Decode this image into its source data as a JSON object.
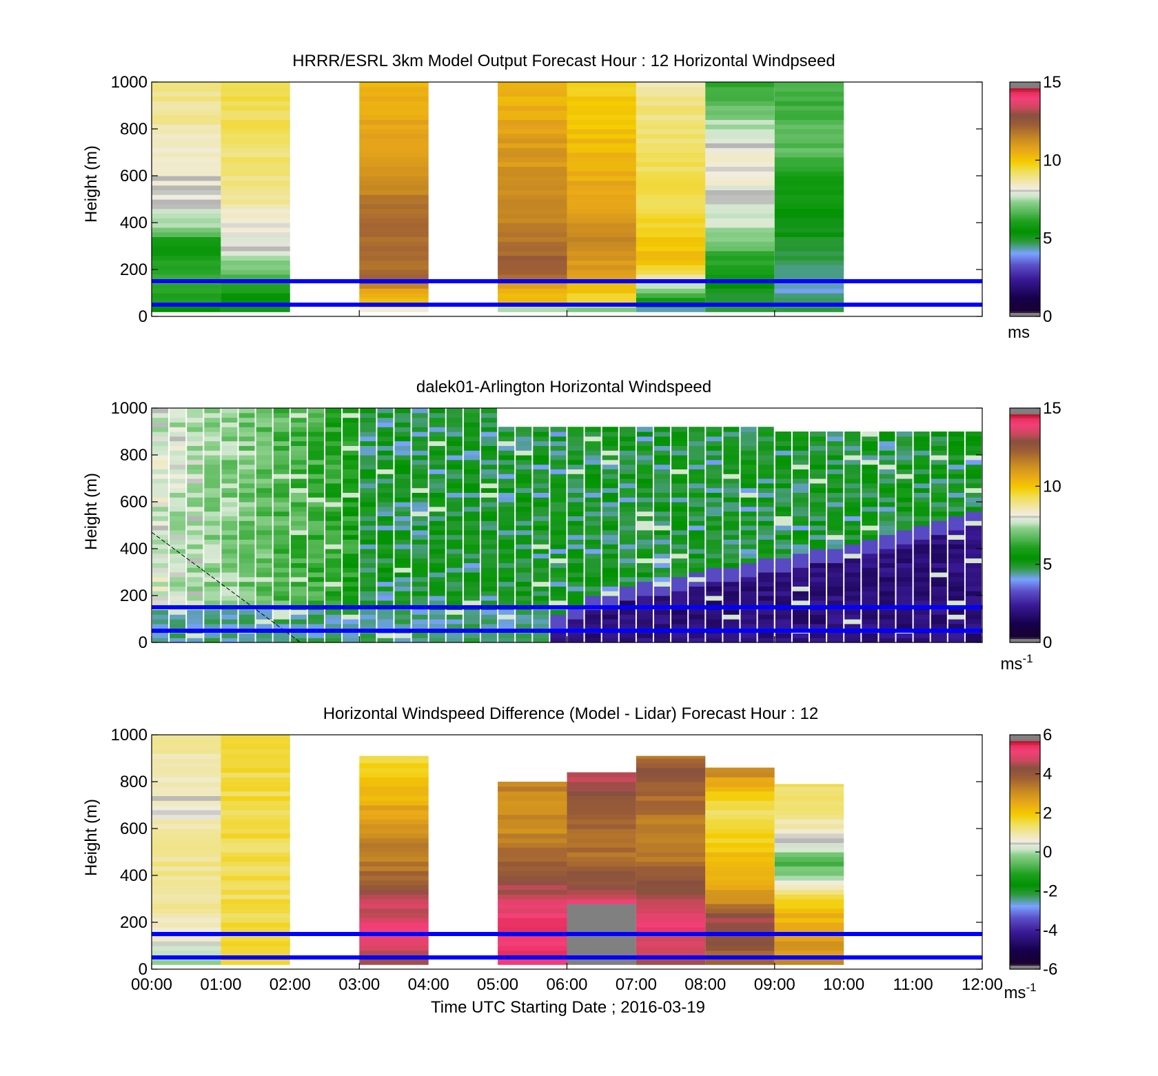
{
  "chart_data": [
    {
      "type": "heatmap",
      "title": "HRRR/ESRL 3km Model Output   Forecast Hour : 12 Horizontal Windpseed",
      "ylabel": "Height (m)",
      "ylim": [
        0,
        1000
      ],
      "yticks": [
        "0",
        "200",
        "400",
        "600",
        "800",
        "1000"
      ],
      "xlim_hours": [
        0,
        12
      ],
      "colorbar": {
        "range": [
          0,
          15
        ],
        "ticks": [
          "0",
          "5",
          "10",
          "15"
        ],
        "unit_base": "ms",
        "unit_exp": ""
      },
      "reference_lines_m": [
        150,
        50
      ],
      "reference_line_color": "#0000ff",
      "columns": [
        {
          "start_h": 0,
          "end_h": 1,
          "bottom_m": 20,
          "top_m": 1000,
          "stops": [
            [
              0,
              5.2
            ],
            [
              80,
              6.0
            ],
            [
              160,
              6.5
            ],
            [
              300,
              5.5
            ],
            [
              400,
              7.6
            ],
            [
              500,
              8.0
            ],
            [
              700,
              8.5
            ],
            [
              1000,
              9.0
            ]
          ]
        },
        {
          "start_h": 1,
          "end_h": 2,
          "bottom_m": 20,
          "top_m": 1000,
          "stops": [
            [
              0,
              5.0
            ],
            [
              150,
              6.2
            ],
            [
              250,
              7.6
            ],
            [
              400,
              8.4
            ],
            [
              600,
              9.0
            ],
            [
              1000,
              9.5
            ]
          ]
        },
        {
          "start_h": 3,
          "end_h": 4,
          "bottom_m": 20,
          "top_m": 1000,
          "stops": [
            [
              0,
              4.6
            ],
            [
              40,
              9.6
            ],
            [
              100,
              10.4
            ],
            [
              140,
              12.0
            ],
            [
              400,
              12.0
            ],
            [
              700,
              11.0
            ],
            [
              1000,
              10.5
            ]
          ]
        },
        {
          "start_h": 5,
          "end_h": 6,
          "bottom_m": 20,
          "top_m": 1000,
          "stops": [
            [
              0,
              5.0
            ],
            [
              60,
              10.0
            ],
            [
              120,
              10.6
            ],
            [
              200,
              12.5
            ],
            [
              400,
              11.5
            ],
            [
              700,
              11.0
            ],
            [
              1000,
              10.3
            ]
          ]
        },
        {
          "start_h": 6,
          "end_h": 7,
          "bottom_m": 20,
          "top_m": 1000,
          "stops": [
            [
              0,
              5.0
            ],
            [
              60,
              9.4
            ],
            [
              140,
              10.5
            ],
            [
              300,
              11.5
            ],
            [
              600,
              10.5
            ],
            [
              1000,
              9.8
            ]
          ]
        },
        {
          "start_h": 7,
          "end_h": 8,
          "bottom_m": 20,
          "top_m": 1000,
          "stops": [
            [
              0,
              3.5
            ],
            [
              80,
              6.0
            ],
            [
              150,
              8.6
            ],
            [
              250,
              10.2
            ],
            [
              400,
              9.6
            ],
            [
              900,
              9.0
            ],
            [
              1000,
              8.6
            ]
          ]
        },
        {
          "start_h": 8,
          "end_h": 9,
          "bottom_m": 20,
          "top_m": 1000,
          "stops": [
            [
              0,
              4.8
            ],
            [
              100,
              5.0
            ],
            [
              200,
              5.8
            ],
            [
              300,
              6.8
            ],
            [
              400,
              7.8
            ],
            [
              700,
              8.4
            ],
            [
              800,
              7.7
            ],
            [
              900,
              6.8
            ],
            [
              1000,
              6.3
            ]
          ]
        },
        {
          "start_h": 9,
          "end_h": 10,
          "bottom_m": 20,
          "top_m": 1000,
          "stops": [
            [
              0,
              4.7
            ],
            [
              150,
              4.2
            ],
            [
              200,
              4.4
            ],
            [
              300,
              5.0
            ],
            [
              450,
              5.5
            ],
            [
              600,
              6.0
            ],
            [
              700,
              6.8
            ],
            [
              1000,
              6.4
            ]
          ]
        }
      ]
    },
    {
      "type": "heatmap",
      "title": "dalek01-Arlington  Horizontal Windspeed",
      "ylabel": "Height (m)",
      "ylim": [
        0,
        1000
      ],
      "yticks": [
        "0",
        "200",
        "400",
        "600",
        "800",
        "1000"
      ],
      "xlim_hours": [
        0,
        12
      ],
      "colorbar": {
        "range": [
          0,
          15
        ],
        "ticks": [
          "0",
          "5",
          "10",
          "15"
        ],
        "unit_base": "ms",
        "unit_exp": "-1"
      },
      "reference_lines_m": [
        150,
        50
      ],
      "reference_line_color": "#0000ff",
      "time_step_h": 0.25,
      "model": {
        "upper_fast": 8.0,
        "upper_slow": 5.0,
        "jet_core": 4.5,
        "nocturnal_low": 1.5,
        "boundary_layer_top_m": [
          [
            0,
            0
          ],
          [
            5.5,
            0
          ],
          [
            6.5,
            150
          ],
          [
            8,
            250
          ],
          [
            9,
            300
          ],
          [
            10,
            350
          ],
          [
            11,
            420
          ],
          [
            12,
            520
          ]
        ]
      },
      "dashed_line": {
        "from": [
          0,
          470
        ],
        "to": [
          2.15,
          0
        ]
      }
    },
    {
      "type": "heatmap",
      "title": "Horizontal Windspeed Difference (Model - Lidar) Forecast Hour : 12",
      "ylabel": "Height (m)",
      "xlabel": "Time UTC  Starting Date ; 2016-03-19",
      "ylim": [
        0,
        1000
      ],
      "yticks": [
        "0",
        "200",
        "400",
        "600",
        "800",
        "1000"
      ],
      "xlim_hours": [
        0,
        12
      ],
      "xticks": [
        "00:00",
        "01:00",
        "02:00",
        "03:00",
        "04:00",
        "05:00",
        "06:00",
        "07:00",
        "08:00",
        "09:00",
        "10:00",
        "11:00",
        "12:00"
      ],
      "colorbar": {
        "range": [
          -6,
          6
        ],
        "ticks": [
          "-6",
          "-4",
          "-2",
          "0",
          "2",
          "4",
          "6"
        ],
        "unit_base": "ms",
        "unit_exp": "-1"
      },
      "reference_lines_m": [
        150,
        50
      ],
      "reference_line_color": "#0000ff",
      "columns": [
        {
          "start_h": 0,
          "end_h": 1,
          "bottom_m": 20,
          "top_m": 1000,
          "stops": [
            [
              0,
              -0.5
            ],
            [
              100,
              0.5
            ],
            [
              300,
              1.0
            ],
            [
              500,
              1.2
            ],
            [
              700,
              0.6
            ],
            [
              1000,
              1.0
            ]
          ]
        },
        {
          "start_h": 1,
          "end_h": 2,
          "bottom_m": 20,
          "top_m": 1000,
          "stops": [
            [
              0,
              1.6
            ],
            [
              100,
              1.8
            ],
            [
              200,
              1.5
            ],
            [
              600,
              1.5
            ],
            [
              1000,
              1.6
            ]
          ]
        },
        {
          "start_h": 3,
          "end_h": 4,
          "bottom_m": 20,
          "top_m": 910,
          "stops": [
            [
              0,
              4.0
            ],
            [
              150,
              5.3
            ],
            [
              300,
              4.5
            ],
            [
              400,
              3.6
            ],
            [
              600,
              3.0
            ],
            [
              800,
              2.0
            ],
            [
              910,
              1.5
            ]
          ]
        },
        {
          "start_h": 5,
          "end_h": 6,
          "bottom_m": 20,
          "top_m": 800,
          "stops": [
            [
              0,
              5.3
            ],
            [
              200,
              5.3
            ],
            [
              300,
              4.8
            ],
            [
              400,
              4.2
            ],
            [
              600,
              3.0
            ],
            [
              800,
              3.2
            ]
          ]
        },
        {
          "start_h": 6,
          "end_h": 7,
          "bottom_m": 20,
          "top_m": 840,
          "stops": [
            [
              0,
              6.0
            ],
            [
              280,
              6.0
            ],
            [
              300,
              4.5
            ],
            [
              500,
              3.5
            ],
            [
              700,
              4.0
            ],
            [
              800,
              4.5
            ],
            [
              840,
              4.5
            ]
          ]
        },
        {
          "start_h": 7,
          "end_h": 8,
          "bottom_m": 20,
          "top_m": 910,
          "stops": [
            [
              0,
              4.4
            ],
            [
              220,
              5.3
            ],
            [
              300,
              4.6
            ],
            [
              500,
              3.2
            ],
            [
              700,
              3.5
            ],
            [
              850,
              4.2
            ],
            [
              910,
              3.5
            ]
          ]
        },
        {
          "start_h": 8,
          "end_h": 9,
          "bottom_m": 20,
          "top_m": 860,
          "stops": [
            [
              0,
              3.5
            ],
            [
              200,
              4.6
            ],
            [
              300,
              3.0
            ],
            [
              500,
              2.0
            ],
            [
              700,
              1.4
            ],
            [
              860,
              3.3
            ]
          ]
        },
        {
          "start_h": 9,
          "end_h": 10,
          "bottom_m": 20,
          "top_m": 790,
          "stops": [
            [
              0,
              3.2
            ],
            [
              250,
              2.2
            ],
            [
              350,
              0.9
            ],
            [
              450,
              -0.8
            ],
            [
              550,
              0.6
            ],
            [
              790,
              1.5
            ]
          ]
        }
      ]
    }
  ]
}
